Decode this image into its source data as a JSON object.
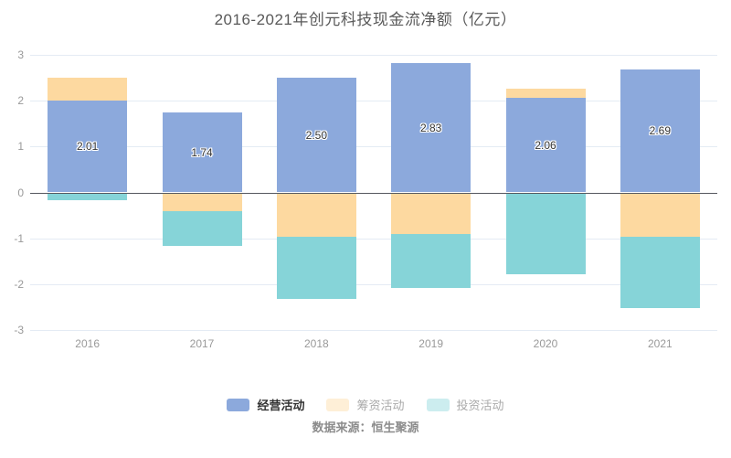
{
  "title": "2016-2021年创元科技现金流净额（亿元）",
  "source": "数据来源：恒生聚源",
  "colors": {
    "operating": "#8CA9DC",
    "financing": "#FDD9A0",
    "investing": "#86D4D8",
    "grid": "#E4EBF4",
    "zero_line": "#55585F",
    "axis_label": "#999999",
    "title_text": "#595959",
    "value_label": "#333333"
  },
  "chart_data": {
    "type": "bar",
    "stacked": true,
    "title": "2016-2021年创元科技现金流净额（亿元）",
    "categories": [
      "2016",
      "2017",
      "2018",
      "2019",
      "2020",
      "2021"
    ],
    "series": [
      {
        "key": "operating",
        "name": "经营活动",
        "color": "#8CA9DC",
        "values": [
          2.01,
          1.74,
          2.5,
          2.83,
          2.06,
          2.69
        ],
        "labels": [
          "2.01",
          "1.74",
          "2.50",
          "2.83",
          "2.06",
          "2.69"
        ],
        "show_labels": true
      },
      {
        "key": "financing",
        "name": "筹资活动",
        "color": "#FDD9A0",
        "values": [
          0.49,
          -0.41,
          -0.97,
          -0.91,
          0.21,
          -0.97
        ],
        "show_labels": false
      },
      {
        "key": "investing",
        "name": "投资活动",
        "color": "#86D4D8",
        "values": [
          -0.16,
          -0.76,
          -1.36,
          -1.17,
          -1.78,
          -1.55
        ],
        "show_labels": false
      }
    ],
    "xlabel": "",
    "ylabel": "",
    "ylim": [
      -3,
      3
    ],
    "ytick_step": 1,
    "yticks": [
      "3",
      "2",
      "1",
      "0",
      "-1",
      "-2",
      "-3"
    ],
    "grid": true,
    "legend_position": "bottom"
  },
  "legend": {
    "items": [
      {
        "label": "经营活动",
        "series_key": "operating",
        "active": true
      },
      {
        "label": "筹资活动",
        "series_key": "financing",
        "active": false
      },
      {
        "label": "投资活动",
        "series_key": "investing",
        "active": false
      }
    ]
  }
}
